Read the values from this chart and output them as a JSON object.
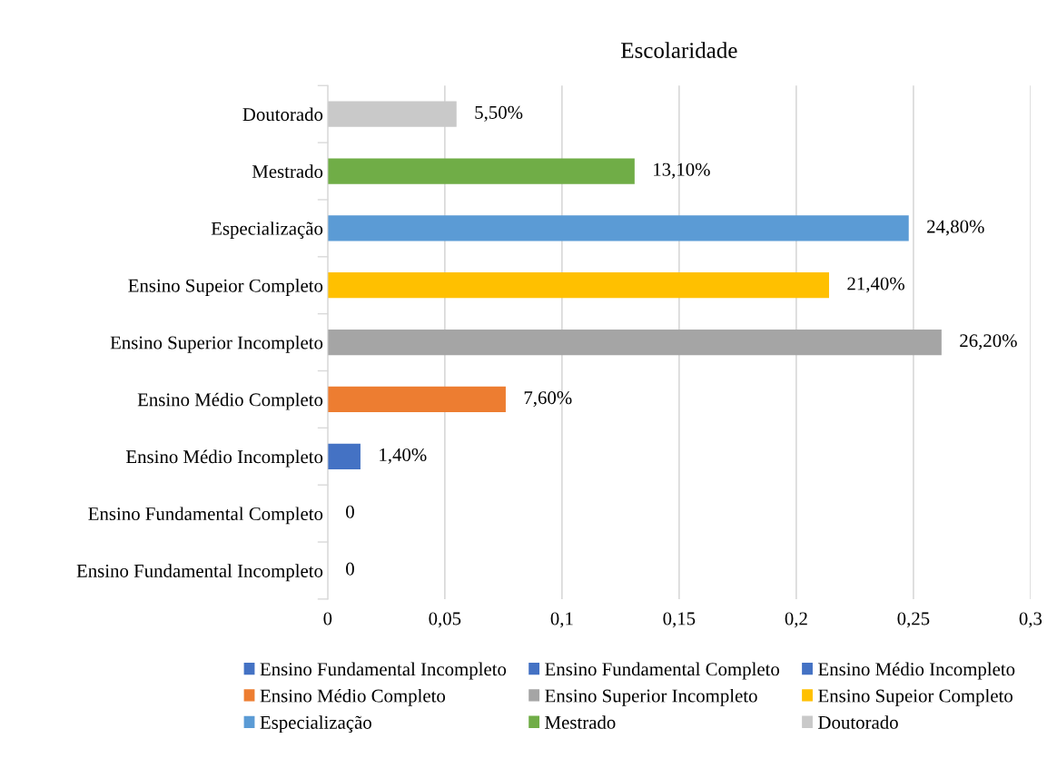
{
  "chart_data": {
    "type": "bar",
    "orientation": "horizontal",
    "title": "Escolaridade",
    "categories": [
      "Doutorado",
      "Mestrado",
      "Especialização",
      "Ensino Supeior Completo",
      "Ensino Superior Incompleto",
      "Ensino Médio Completo",
      "Ensino Médio Incompleto",
      "Ensino Fundamental Completo",
      "Ensino Fundamental Incompleto"
    ],
    "series": [
      {
        "name": "Ensino Fundamental Incompleto",
        "color": "#4472c4",
        "values": [
          null,
          null,
          null,
          null,
          null,
          null,
          null,
          null,
          0
        ],
        "value_labels": [
          null,
          null,
          null,
          null,
          null,
          null,
          null,
          null,
          "0"
        ]
      },
      {
        "name": "Ensino Fundamental Completo",
        "color": "#4472c4",
        "values": [
          null,
          null,
          null,
          null,
          null,
          null,
          null,
          0,
          null
        ],
        "value_labels": [
          null,
          null,
          null,
          null,
          null,
          null,
          null,
          "0",
          null
        ]
      },
      {
        "name": "Ensino Médio Incompleto",
        "color": "#4472c4",
        "values": [
          null,
          null,
          null,
          null,
          null,
          null,
          0.014,
          null,
          null
        ],
        "value_labels": [
          null,
          null,
          null,
          null,
          null,
          null,
          "1,40%",
          null,
          null
        ]
      },
      {
        "name": "Ensino Médio Completo",
        "color": "#ed7d31",
        "values": [
          null,
          null,
          null,
          null,
          null,
          0.076,
          null,
          null,
          null
        ],
        "value_labels": [
          null,
          null,
          null,
          null,
          null,
          "7,60%",
          null,
          null,
          null
        ]
      },
      {
        "name": "Ensino Superior Incompleto",
        "color": "#a5a5a5",
        "values": [
          null,
          null,
          null,
          null,
          0.262,
          null,
          null,
          null,
          null
        ],
        "value_labels": [
          null,
          null,
          null,
          null,
          "26,20%",
          null,
          null,
          null,
          null
        ]
      },
      {
        "name": "Ensino Supeior Completo",
        "color": "#ffc000",
        "values": [
          null,
          null,
          null,
          0.214,
          null,
          null,
          null,
          null,
          null
        ],
        "value_labels": [
          null,
          null,
          null,
          "21,40%",
          null,
          null,
          null,
          null,
          null
        ]
      },
      {
        "name": "Especialização",
        "color": "#5b9bd5",
        "values": [
          null,
          null,
          0.248,
          null,
          null,
          null,
          null,
          null,
          null
        ],
        "value_labels": [
          null,
          null,
          "24,80%",
          null,
          null,
          null,
          null,
          null,
          null
        ]
      },
      {
        "name": "Mestrado",
        "color": "#70ad47",
        "values": [
          null,
          0.131,
          null,
          null,
          null,
          null,
          null,
          null,
          null
        ],
        "value_labels": [
          null,
          "13,10%",
          null,
          null,
          null,
          null,
          null,
          null,
          null
        ]
      },
      {
        "name": "Doutorado",
        "color": "#c9c9c9",
        "values": [
          0.055,
          null,
          null,
          null,
          null,
          null,
          null,
          null,
          null
        ],
        "value_labels": [
          "5,50%",
          null,
          null,
          null,
          null,
          null,
          null,
          null,
          null
        ]
      }
    ],
    "xlim": [
      0,
      0.3
    ],
    "xticks": [
      0,
      {
        "value": 0.05,
        "label": "0,05"
      },
      {
        "value": 0.1,
        "label": "0,1"
      },
      {
        "value": 0.15,
        "label": "0,15"
      },
      {
        "value": 0.2,
        "label": "0,2"
      },
      {
        "value": 0.25,
        "label": "0,25"
      },
      {
        "value": 0.3,
        "label": "0,3"
      }
    ],
    "grid": "x",
    "legend": "bottom"
  }
}
